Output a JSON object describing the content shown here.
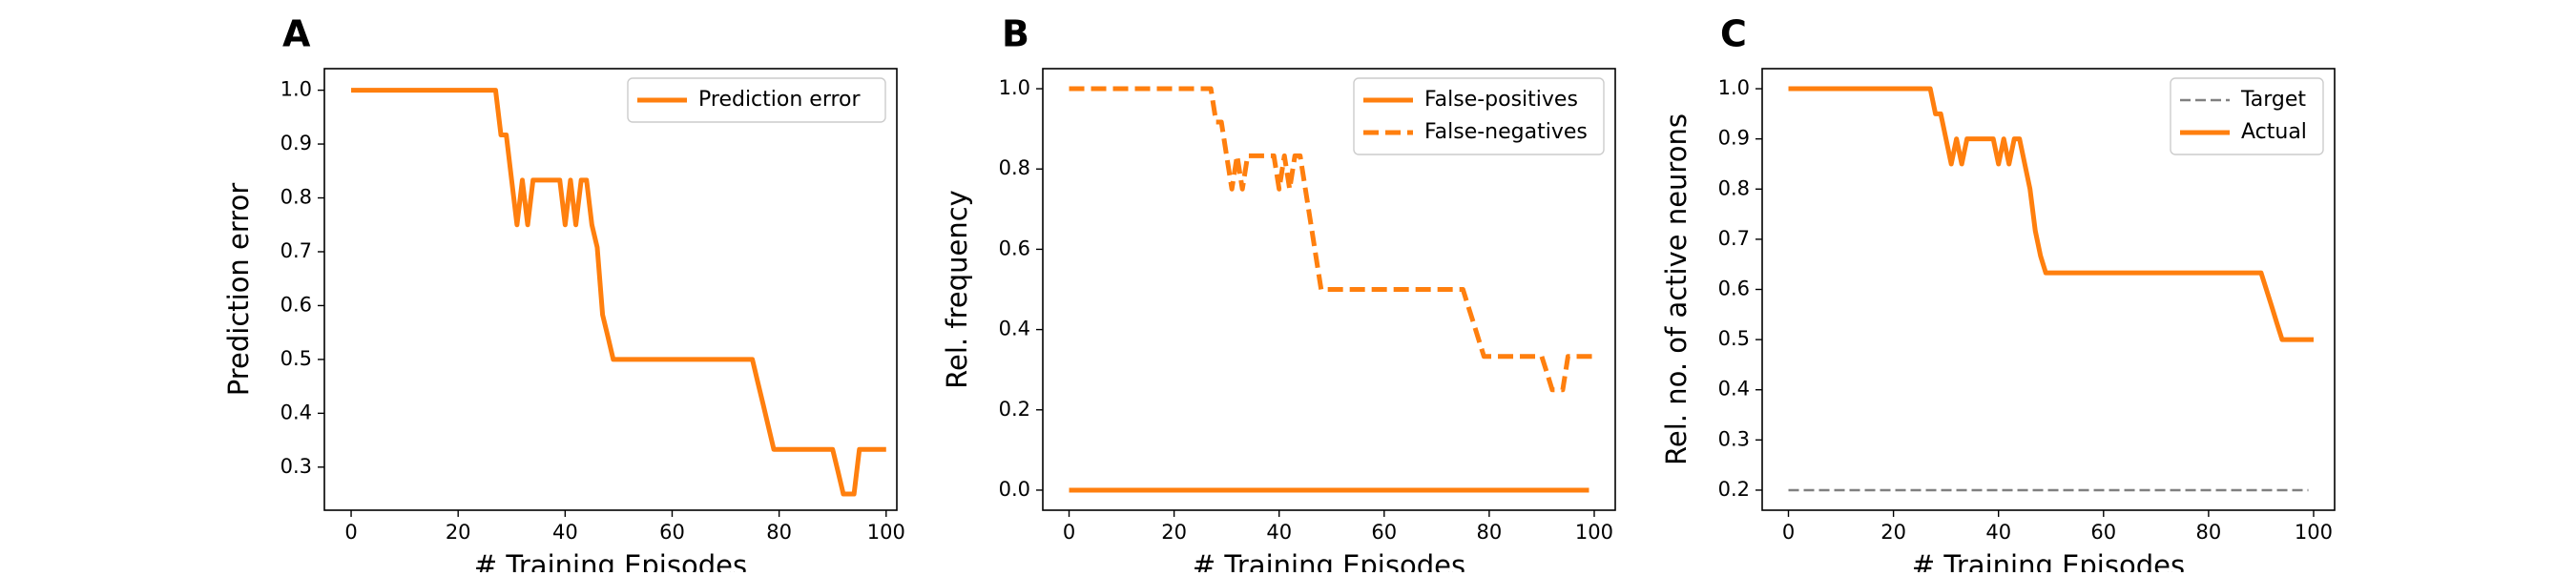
{
  "chart_data": [
    {
      "panel_label": "A",
      "type": "line",
      "xlabel": "# Training Episodes",
      "ylabel": "Prediction error",
      "xlim": [
        -5,
        102
      ],
      "ylim": [
        0.22,
        1.04
      ],
      "xticks": [
        0,
        20,
        40,
        60,
        80,
        100
      ],
      "yticks": [
        0.3,
        0.4,
        0.5,
        0.6,
        0.7,
        0.8,
        0.9,
        1.0
      ],
      "ytick_labels": [
        "0.3",
        "0.4",
        "0.5",
        "0.6",
        "0.7",
        "0.8",
        "0.9",
        "1.0"
      ],
      "grid": false,
      "legend": "top-right",
      "series": [
        {
          "name": "Prediction error",
          "color": "#ff7f0e",
          "style": "solid",
          "x": [
            0,
            27,
            28,
            29,
            30,
            31,
            32,
            33,
            34,
            35,
            36,
            37,
            38,
            39,
            40,
            41,
            42,
            43,
            44,
            45,
            46,
            47,
            48,
            49,
            50,
            75,
            76,
            77,
            78,
            79,
            80,
            90,
            91,
            92,
            93,
            94,
            95,
            100
          ],
          "y": [
            1.0,
            1.0,
            0.917,
            0.917,
            0.833,
            0.75,
            0.833,
            0.75,
            0.833,
            0.833,
            0.833,
            0.833,
            0.833,
            0.833,
            0.75,
            0.833,
            0.75,
            0.833,
            0.833,
            0.75,
            0.708,
            0.583,
            0.542,
            0.5,
            0.5,
            0.5,
            0.458,
            0.417,
            0.375,
            0.333,
            0.333,
            0.333,
            0.292,
            0.25,
            0.25,
            0.25,
            0.333,
            0.333
          ]
        }
      ]
    },
    {
      "panel_label": "B",
      "type": "line",
      "xlabel": "# Training Episodes",
      "ylabel": "Rel. frequency",
      "xlim": [
        -5,
        104
      ],
      "ylim": [
        -0.05,
        1.05
      ],
      "xticks": [
        0,
        20,
        40,
        60,
        80,
        100
      ],
      "yticks": [
        0.0,
        0.2,
        0.4,
        0.6,
        0.8,
        1.0
      ],
      "ytick_labels": [
        "0.0",
        "0.2",
        "0.4",
        "0.6",
        "0.8",
        "1.0"
      ],
      "grid": false,
      "legend": "top-right",
      "series": [
        {
          "name": "False-positives",
          "color": "#ff7f0e",
          "style": "solid",
          "x": [
            0,
            99
          ],
          "y": [
            0.0,
            0.0
          ]
        },
        {
          "name": "False-negatives",
          "color": "#ff7f0e",
          "style": "dashed",
          "x": [
            0,
            27,
            28,
            29,
            30,
            31,
            32,
            33,
            34,
            35,
            36,
            37,
            38,
            39,
            40,
            41,
            42,
            43,
            44,
            45,
            46,
            47,
            48,
            49,
            50,
            75,
            76,
            77,
            78,
            79,
            80,
            90,
            91,
            92,
            93,
            94,
            95,
            100
          ],
          "y": [
            1.0,
            1.0,
            0.917,
            0.917,
            0.833,
            0.75,
            0.833,
            0.75,
            0.833,
            0.833,
            0.833,
            0.833,
            0.833,
            0.833,
            0.75,
            0.833,
            0.75,
            0.833,
            0.833,
            0.75,
            0.667,
            0.583,
            0.5,
            0.5,
            0.5,
            0.5,
            0.458,
            0.417,
            0.375,
            0.333,
            0.333,
            0.333,
            0.292,
            0.25,
            0.25,
            0.25,
            0.333,
            0.333
          ]
        }
      ]
    },
    {
      "panel_label": "C",
      "type": "line",
      "xlabel": "# Training Episodes",
      "ylabel": "Rel. no. of active neurons",
      "xlim": [
        -5,
        104
      ],
      "ylim": [
        0.16,
        1.04
      ],
      "xticks": [
        0,
        20,
        40,
        60,
        80,
        100
      ],
      "yticks": [
        0.2,
        0.3,
        0.4,
        0.5,
        0.6,
        0.7,
        0.8,
        0.9,
        1.0
      ],
      "ytick_labels": [
        "0.2",
        "0.3",
        "0.4",
        "0.5",
        "0.6",
        "0.7",
        "0.8",
        "0.9",
        "1.0"
      ],
      "grid": false,
      "legend": "top-right",
      "series": [
        {
          "name": "Target",
          "color": "#808080",
          "style": "dashed",
          "x": [
            0,
            99
          ],
          "y": [
            0.2,
            0.2
          ]
        },
        {
          "name": "Actual",
          "color": "#ff7f0e",
          "style": "solid",
          "x": [
            0,
            27,
            28,
            29,
            30,
            31,
            32,
            33,
            34,
            35,
            36,
            37,
            38,
            39,
            40,
            41,
            42,
            43,
            44,
            45,
            46,
            47,
            48,
            49,
            50,
            90,
            91,
            92,
            93,
            94,
            95,
            100
          ],
          "y": [
            1.0,
            1.0,
            0.95,
            0.95,
            0.9,
            0.85,
            0.9,
            0.85,
            0.9,
            0.9,
            0.9,
            0.9,
            0.9,
            0.9,
            0.85,
            0.9,
            0.85,
            0.9,
            0.9,
            0.85,
            0.8,
            0.717,
            0.667,
            0.633,
            0.633,
            0.633,
            0.6,
            0.567,
            0.533,
            0.5,
            0.5,
            0.5
          ]
        }
      ]
    }
  ]
}
